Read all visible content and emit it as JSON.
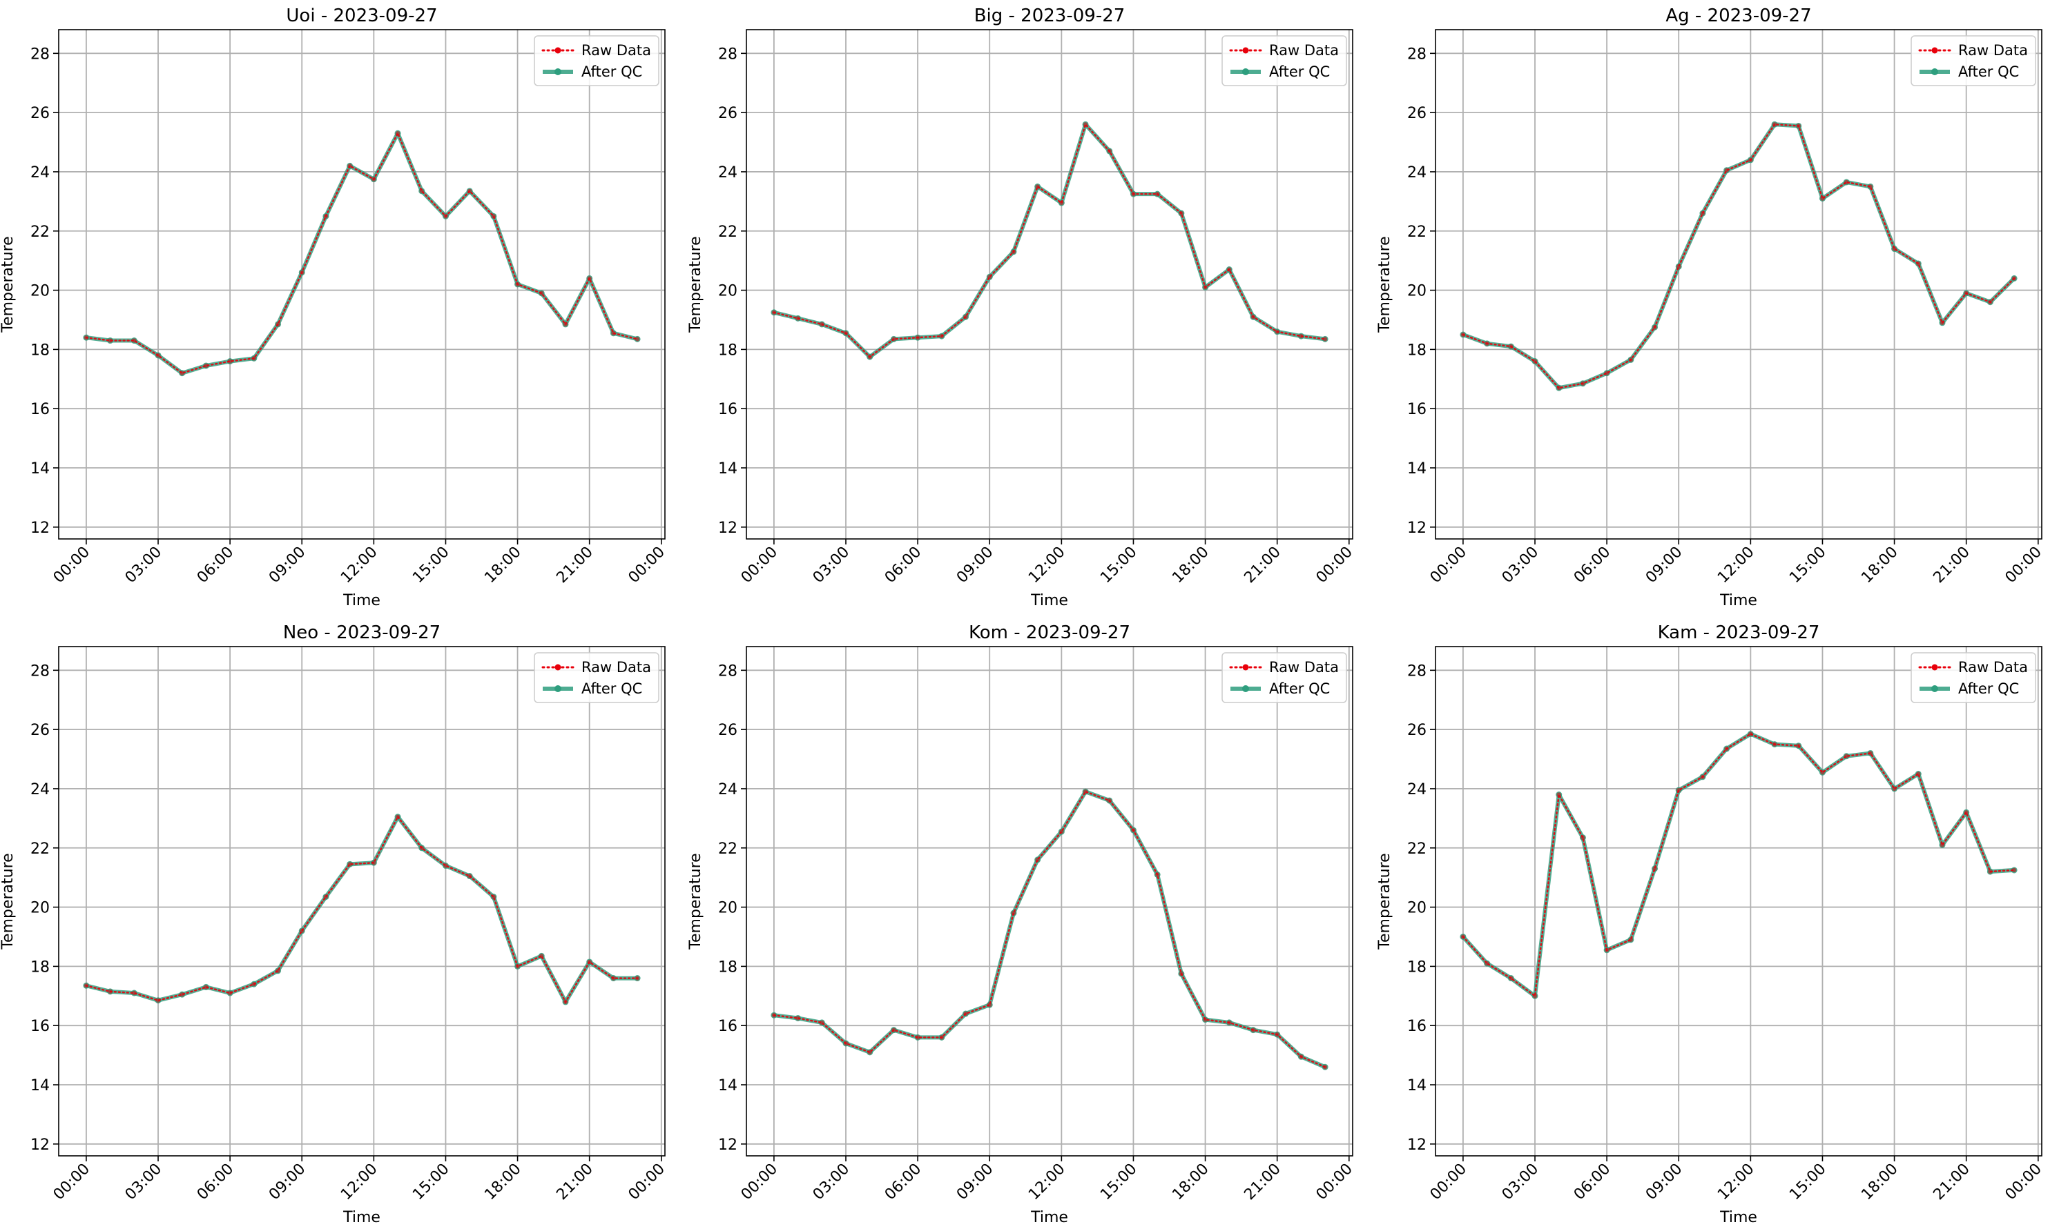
{
  "figure": {
    "background": "#ffffff"
  },
  "legend_labels": {
    "raw": "Raw Data",
    "qc": "After QC"
  },
  "colors": {
    "raw": "#e8000b",
    "qc": "#2e9e7e",
    "grid": "#b0b0b0",
    "axis": "#000000"
  },
  "chart_data": [
    {
      "type": "line",
      "title": "Uoi - 2023-09-27",
      "xlabel": "Time",
      "ylabel": "Temperature",
      "xlim": [
        -1.15,
        24.15
      ],
      "ylim": [
        11.6,
        28.8
      ],
      "xticks": [
        0,
        3,
        6,
        9,
        12,
        15,
        18,
        21,
        24
      ],
      "xtick_labels": [
        "00:00",
        "03:00",
        "06:00",
        "09:00",
        "12:00",
        "15:00",
        "18:00",
        "21:00",
        "00:00"
      ],
      "yticks": [
        12,
        14,
        16,
        18,
        20,
        22,
        24,
        26,
        28
      ],
      "grid": true,
      "legend_position": "top-right",
      "x": [
        0,
        1,
        2,
        3,
        4,
        5,
        6,
        7,
        8,
        9,
        10,
        11,
        12,
        13,
        14,
        15,
        16,
        17,
        18,
        19,
        20,
        21,
        22,
        23
      ],
      "series": [
        {
          "name": "Raw Data",
          "style": "dotted",
          "values": [
            18.4,
            18.3,
            18.3,
            17.8,
            17.2,
            17.45,
            17.6,
            17.7,
            18.85,
            20.6,
            22.5,
            24.2,
            23.75,
            25.3,
            23.35,
            22.5,
            23.35,
            22.5,
            20.2,
            19.9,
            18.85,
            20.4,
            18.55,
            18.35
          ]
        },
        {
          "name": "After QC",
          "style": "solid",
          "values": [
            18.4,
            18.3,
            18.3,
            17.8,
            17.2,
            17.45,
            17.6,
            17.7,
            18.85,
            20.6,
            22.5,
            24.2,
            23.75,
            25.3,
            23.35,
            22.5,
            23.35,
            22.5,
            20.2,
            19.9,
            18.85,
            20.4,
            18.55,
            18.35
          ]
        }
      ]
    },
    {
      "type": "line",
      "title": "Big - 2023-09-27",
      "xlabel": "Time",
      "ylabel": "Temperature",
      "xlim": [
        -1.15,
        24.15
      ],
      "ylim": [
        11.6,
        28.8
      ],
      "xticks": [
        0,
        3,
        6,
        9,
        12,
        15,
        18,
        21,
        24
      ],
      "xtick_labels": [
        "00:00",
        "03:00",
        "06:00",
        "09:00",
        "12:00",
        "15:00",
        "18:00",
        "21:00",
        "00:00"
      ],
      "yticks": [
        12,
        14,
        16,
        18,
        20,
        22,
        24,
        26,
        28
      ],
      "grid": true,
      "legend_position": "top-right",
      "x": [
        0,
        1,
        2,
        3,
        4,
        5,
        6,
        7,
        8,
        9,
        10,
        11,
        12,
        13,
        14,
        15,
        16,
        17,
        18,
        19,
        20,
        21,
        22,
        23
      ],
      "series": [
        {
          "name": "Raw Data",
          "style": "dotted",
          "values": [
            19.25,
            19.05,
            18.85,
            18.55,
            17.75,
            18.35,
            18.4,
            18.45,
            19.1,
            20.45,
            21.3,
            23.5,
            22.95,
            25.6,
            24.7,
            23.25,
            23.25,
            22.6,
            20.1,
            20.7,
            19.1,
            18.6,
            18.45,
            18.35
          ]
        },
        {
          "name": "After QC",
          "style": "solid",
          "values": [
            19.25,
            19.05,
            18.85,
            18.55,
            17.75,
            18.35,
            18.4,
            18.45,
            19.1,
            20.45,
            21.3,
            23.5,
            22.95,
            25.6,
            24.7,
            23.25,
            23.25,
            22.6,
            20.1,
            20.7,
            19.1,
            18.6,
            18.45,
            18.35
          ]
        }
      ]
    },
    {
      "type": "line",
      "title": "Ag - 2023-09-27",
      "xlabel": "Time",
      "ylabel": "Temperature",
      "xlim": [
        -1.15,
        24.15
      ],
      "ylim": [
        11.6,
        28.8
      ],
      "xticks": [
        0,
        3,
        6,
        9,
        12,
        15,
        18,
        21,
        24
      ],
      "xtick_labels": [
        "00:00",
        "03:00",
        "06:00",
        "09:00",
        "12:00",
        "15:00",
        "18:00",
        "21:00",
        "00:00"
      ],
      "yticks": [
        12,
        14,
        16,
        18,
        20,
        22,
        24,
        26,
        28
      ],
      "grid": true,
      "legend_position": "top-right",
      "x": [
        0,
        1,
        2,
        3,
        4,
        5,
        6,
        7,
        8,
        9,
        10,
        11,
        12,
        13,
        14,
        15,
        16,
        17,
        18,
        19,
        20,
        21,
        22,
        23
      ],
      "series": [
        {
          "name": "Raw Data",
          "style": "dotted",
          "values": [
            18.5,
            18.2,
            18.1,
            17.6,
            16.7,
            16.85,
            17.2,
            17.65,
            18.75,
            20.8,
            22.6,
            24.05,
            24.4,
            25.6,
            25.55,
            23.1,
            23.65,
            23.5,
            21.4,
            20.9,
            18.9,
            19.9,
            19.6,
            20.4
          ]
        },
        {
          "name": "After QC",
          "style": "solid",
          "values": [
            18.5,
            18.2,
            18.1,
            17.6,
            16.7,
            16.85,
            17.2,
            17.65,
            18.75,
            20.8,
            22.6,
            24.05,
            24.4,
            25.6,
            25.55,
            23.1,
            23.65,
            23.5,
            21.4,
            20.9,
            18.9,
            19.9,
            19.6,
            20.4
          ]
        }
      ]
    },
    {
      "type": "line",
      "title": "Neo - 2023-09-27",
      "xlabel": "Time",
      "ylabel": "Temperature",
      "xlim": [
        -1.15,
        24.15
      ],
      "ylim": [
        11.6,
        28.8
      ],
      "xticks": [
        0,
        3,
        6,
        9,
        12,
        15,
        18,
        21,
        24
      ],
      "xtick_labels": [
        "00:00",
        "03:00",
        "06:00",
        "09:00",
        "12:00",
        "15:00",
        "18:00",
        "21:00",
        "00:00"
      ],
      "yticks": [
        12,
        14,
        16,
        18,
        20,
        22,
        24,
        26,
        28
      ],
      "grid": true,
      "legend_position": "top-right",
      "x": [
        0,
        1,
        2,
        3,
        4,
        5,
        6,
        7,
        8,
        9,
        10,
        11,
        12,
        13,
        14,
        15,
        16,
        17,
        18,
        19,
        20,
        21,
        22,
        23
      ],
      "series": [
        {
          "name": "Raw Data",
          "style": "dotted",
          "values": [
            17.35,
            17.15,
            17.1,
            16.85,
            17.05,
            17.3,
            17.1,
            17.4,
            17.85,
            19.2,
            20.35,
            21.45,
            21.5,
            23.05,
            22.0,
            21.4,
            21.05,
            20.35,
            18.0,
            18.35,
            16.8,
            18.15,
            17.6,
            17.6
          ]
        },
        {
          "name": "After QC",
          "style": "solid",
          "values": [
            17.35,
            17.15,
            17.1,
            16.85,
            17.05,
            17.3,
            17.1,
            17.4,
            17.85,
            19.2,
            20.35,
            21.45,
            21.5,
            23.05,
            22.0,
            21.4,
            21.05,
            20.35,
            18.0,
            18.35,
            16.8,
            18.15,
            17.6,
            17.6
          ]
        }
      ]
    },
    {
      "type": "line",
      "title": "Kom - 2023-09-27",
      "xlabel": "Time",
      "ylabel": "Temperature",
      "xlim": [
        -1.15,
        24.15
      ],
      "ylim": [
        11.6,
        28.8
      ],
      "xticks": [
        0,
        3,
        6,
        9,
        12,
        15,
        18,
        21,
        24
      ],
      "xtick_labels": [
        "00:00",
        "03:00",
        "06:00",
        "09:00",
        "12:00",
        "15:00",
        "18:00",
        "21:00",
        "00:00"
      ],
      "yticks": [
        12,
        14,
        16,
        18,
        20,
        22,
        24,
        26,
        28
      ],
      "grid": true,
      "legend_position": "top-right",
      "x": [
        0,
        1,
        2,
        3,
        4,
        5,
        6,
        7,
        8,
        9,
        10,
        11,
        12,
        13,
        14,
        15,
        16,
        17,
        18,
        19,
        20,
        21,
        22,
        23
      ],
      "series": [
        {
          "name": "Raw Data",
          "style": "dotted",
          "values": [
            16.35,
            16.25,
            16.1,
            15.4,
            15.1,
            15.85,
            15.6,
            15.6,
            16.4,
            16.7,
            19.8,
            21.6,
            22.55,
            23.9,
            23.6,
            22.6,
            21.1,
            17.75,
            16.2,
            16.1,
            15.85,
            15.7,
            14.95,
            14.6
          ]
        },
        {
          "name": "After QC",
          "style": "solid",
          "values": [
            16.35,
            16.25,
            16.1,
            15.4,
            15.1,
            15.85,
            15.6,
            15.6,
            16.4,
            16.7,
            19.8,
            21.6,
            22.55,
            23.9,
            23.6,
            22.6,
            21.1,
            17.75,
            16.2,
            16.1,
            15.85,
            15.7,
            14.95,
            14.6
          ]
        }
      ]
    },
    {
      "type": "line",
      "title": "Kam - 2023-09-27",
      "xlabel": "Time",
      "ylabel": "Temperature",
      "xlim": [
        -1.15,
        24.15
      ],
      "ylim": [
        11.6,
        28.8
      ],
      "xticks": [
        0,
        3,
        6,
        9,
        12,
        15,
        18,
        21,
        24
      ],
      "xtick_labels": [
        "00:00",
        "03:00",
        "06:00",
        "09:00",
        "12:00",
        "15:00",
        "18:00",
        "21:00",
        "00:00"
      ],
      "yticks": [
        12,
        14,
        16,
        18,
        20,
        22,
        24,
        26,
        28
      ],
      "grid": true,
      "legend_position": "top-right",
      "x": [
        0,
        1,
        2,
        3,
        4,
        5,
        6,
        7,
        8,
        9,
        10,
        11,
        12,
        13,
        14,
        15,
        16,
        17,
        18,
        19,
        20,
        21,
        22,
        23
      ],
      "series": [
        {
          "name": "Raw Data",
          "style": "dotted",
          "values": [
            19.0,
            18.1,
            17.6,
            17.0,
            23.8,
            22.35,
            18.55,
            18.9,
            21.3,
            23.95,
            24.4,
            25.35,
            25.85,
            25.5,
            25.45,
            24.55,
            25.1,
            25.2,
            24.0,
            24.5,
            22.1,
            23.2,
            21.2,
            21.25
          ]
        },
        {
          "name": "After QC",
          "style": "solid",
          "values": [
            19.0,
            18.1,
            17.6,
            17.0,
            23.8,
            22.35,
            18.55,
            18.9,
            21.3,
            23.95,
            24.4,
            25.35,
            25.85,
            25.5,
            25.45,
            24.55,
            25.1,
            25.2,
            24.0,
            24.5,
            22.1,
            23.2,
            21.2,
            21.25
          ]
        }
      ]
    }
  ]
}
